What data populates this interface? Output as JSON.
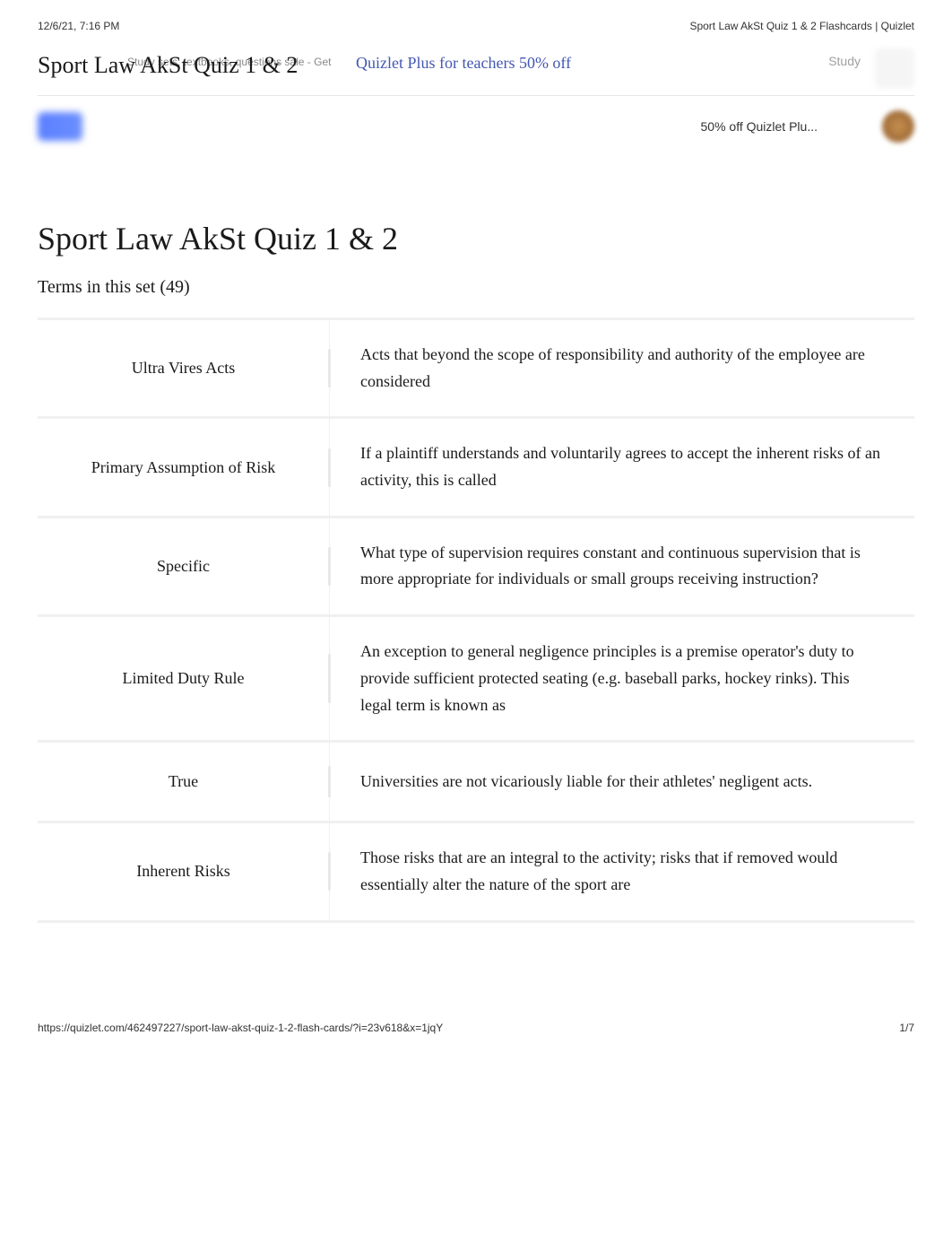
{
  "meta": {
    "timestamp": "12/6/21, 7:16 PM",
    "page_header": "Sport Law AkSt Quiz 1 & 2 Flashcards | Quizlet"
  },
  "header": {
    "title": "Sport Law AkSt Quiz 1 & 2",
    "overlay_text": "Study sets, textbooks, questions   sale - Get",
    "quizlet_plus": "Quizlet Plus for teachers 50% off",
    "study_button": "Study"
  },
  "subheader": {
    "promo": "50% off Quizlet Plu..."
  },
  "main": {
    "title": "Sport Law AkSt Quiz 1 & 2",
    "terms_label": "Terms in this set (49)"
  },
  "cards": [
    {
      "term": "Ultra Vires Acts",
      "definition": "Acts that beyond the scope of responsibility and authority of the employee are considered"
    },
    {
      "term": "Primary Assumption of Risk",
      "definition": "If a plaintiff understands and voluntarily agrees to accept the inherent risks of an activity, this is called"
    },
    {
      "term": "Specific",
      "definition": "What type of supervision requires constant and continuous supervision that is more appropriate for individuals or small groups receiving instruction?"
    },
    {
      "term": "Limited Duty Rule",
      "definition": "An exception to general negligence principles is a premise operator's duty to provide sufficient protected seating (e.g. baseball parks, hockey rinks). This legal term is known as"
    },
    {
      "term": "True",
      "definition": "Universities are not vicariously liable for their athletes' negligent acts."
    },
    {
      "term": "Inherent Risks",
      "definition": "Those risks that are an integral to the activity; risks that if removed would essentially alter the nature of the sport are"
    }
  ],
  "footer": {
    "url": "https://quizlet.com/462497227/sport-law-akst-quiz-1-2-flash-cards/?i=23v618&x=1jqY",
    "page_number": "1/7"
  },
  "colors": {
    "link": "#4257b2",
    "divider": "#f0f0f0",
    "text": "#1a1a1a",
    "muted": "#a0a0a0"
  }
}
